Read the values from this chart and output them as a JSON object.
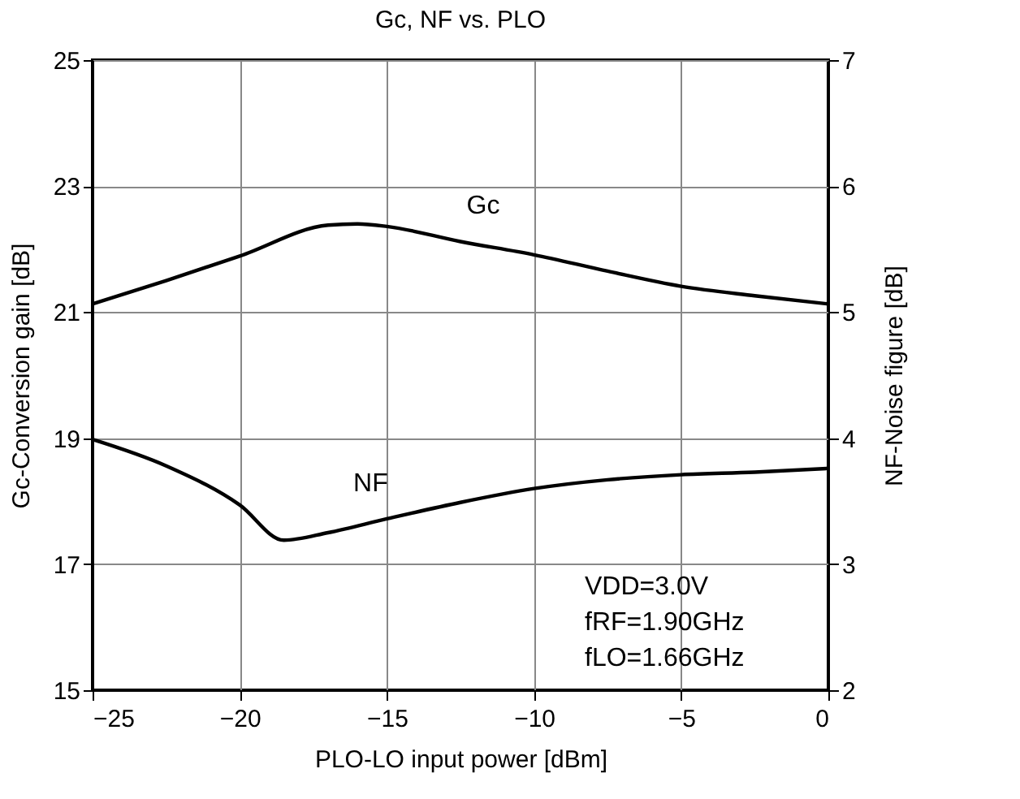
{
  "chart_data": {
    "type": "line",
    "title": "Gc, NF vs. PLO",
    "xlabel": "PLO-LO input power [dBm]",
    "ylabel": "Gc-Conversion gain [dB]",
    "y2label": "NF-Noise figure [dB]",
    "series": [
      {
        "name": "Gc",
        "color": "#000000",
        "x": [
          -25,
          -22.5,
          -20,
          -17,
          -16,
          -15,
          -12.5,
          -10,
          -7.5,
          -5,
          -2.5,
          0
        ],
        "values": [
          21.13,
          21.5,
          21.89,
          22.38,
          22.4,
          22.36,
          22.12,
          21.91,
          21.65,
          21.41,
          21.26,
          21.13
        ]
      },
      {
        "name": "NF",
        "color": "#000000",
        "axis": "y2",
        "x": [
          -25,
          -22.5,
          -20,
          -18.5,
          -17,
          -15,
          -12.5,
          -10,
          -7.5,
          -5,
          -2.5,
          0
        ],
        "values": [
          3.99,
          3.78,
          3.47,
          3.19,
          3.25,
          3.36,
          3.49,
          3.6,
          3.67,
          3.71,
          3.73,
          3.76
        ]
      }
    ],
    "xlim": [
      -25,
      0
    ],
    "xticks": [
      {
        "value": -25,
        "label": "−25"
      },
      {
        "value": -20,
        "label": "−20"
      },
      {
        "value": -15,
        "label": "−15"
      },
      {
        "value": -10,
        "label": "−10"
      },
      {
        "value": -5,
        "label": "−5"
      },
      0
    ],
    "ylim": [
      15,
      25
    ],
    "yticks": [
      15,
      17,
      19,
      21,
      23,
      25
    ],
    "y2lim": [
      2,
      7
    ],
    "y2ticks": [
      2,
      3,
      4,
      5,
      6,
      7
    ],
    "grid": true,
    "marker": "none",
    "line_style": "solid",
    "annotations": [
      "VDD=3.0V",
      "fRF=1.90GHz",
      "fLO=1.66GHz"
    ]
  }
}
